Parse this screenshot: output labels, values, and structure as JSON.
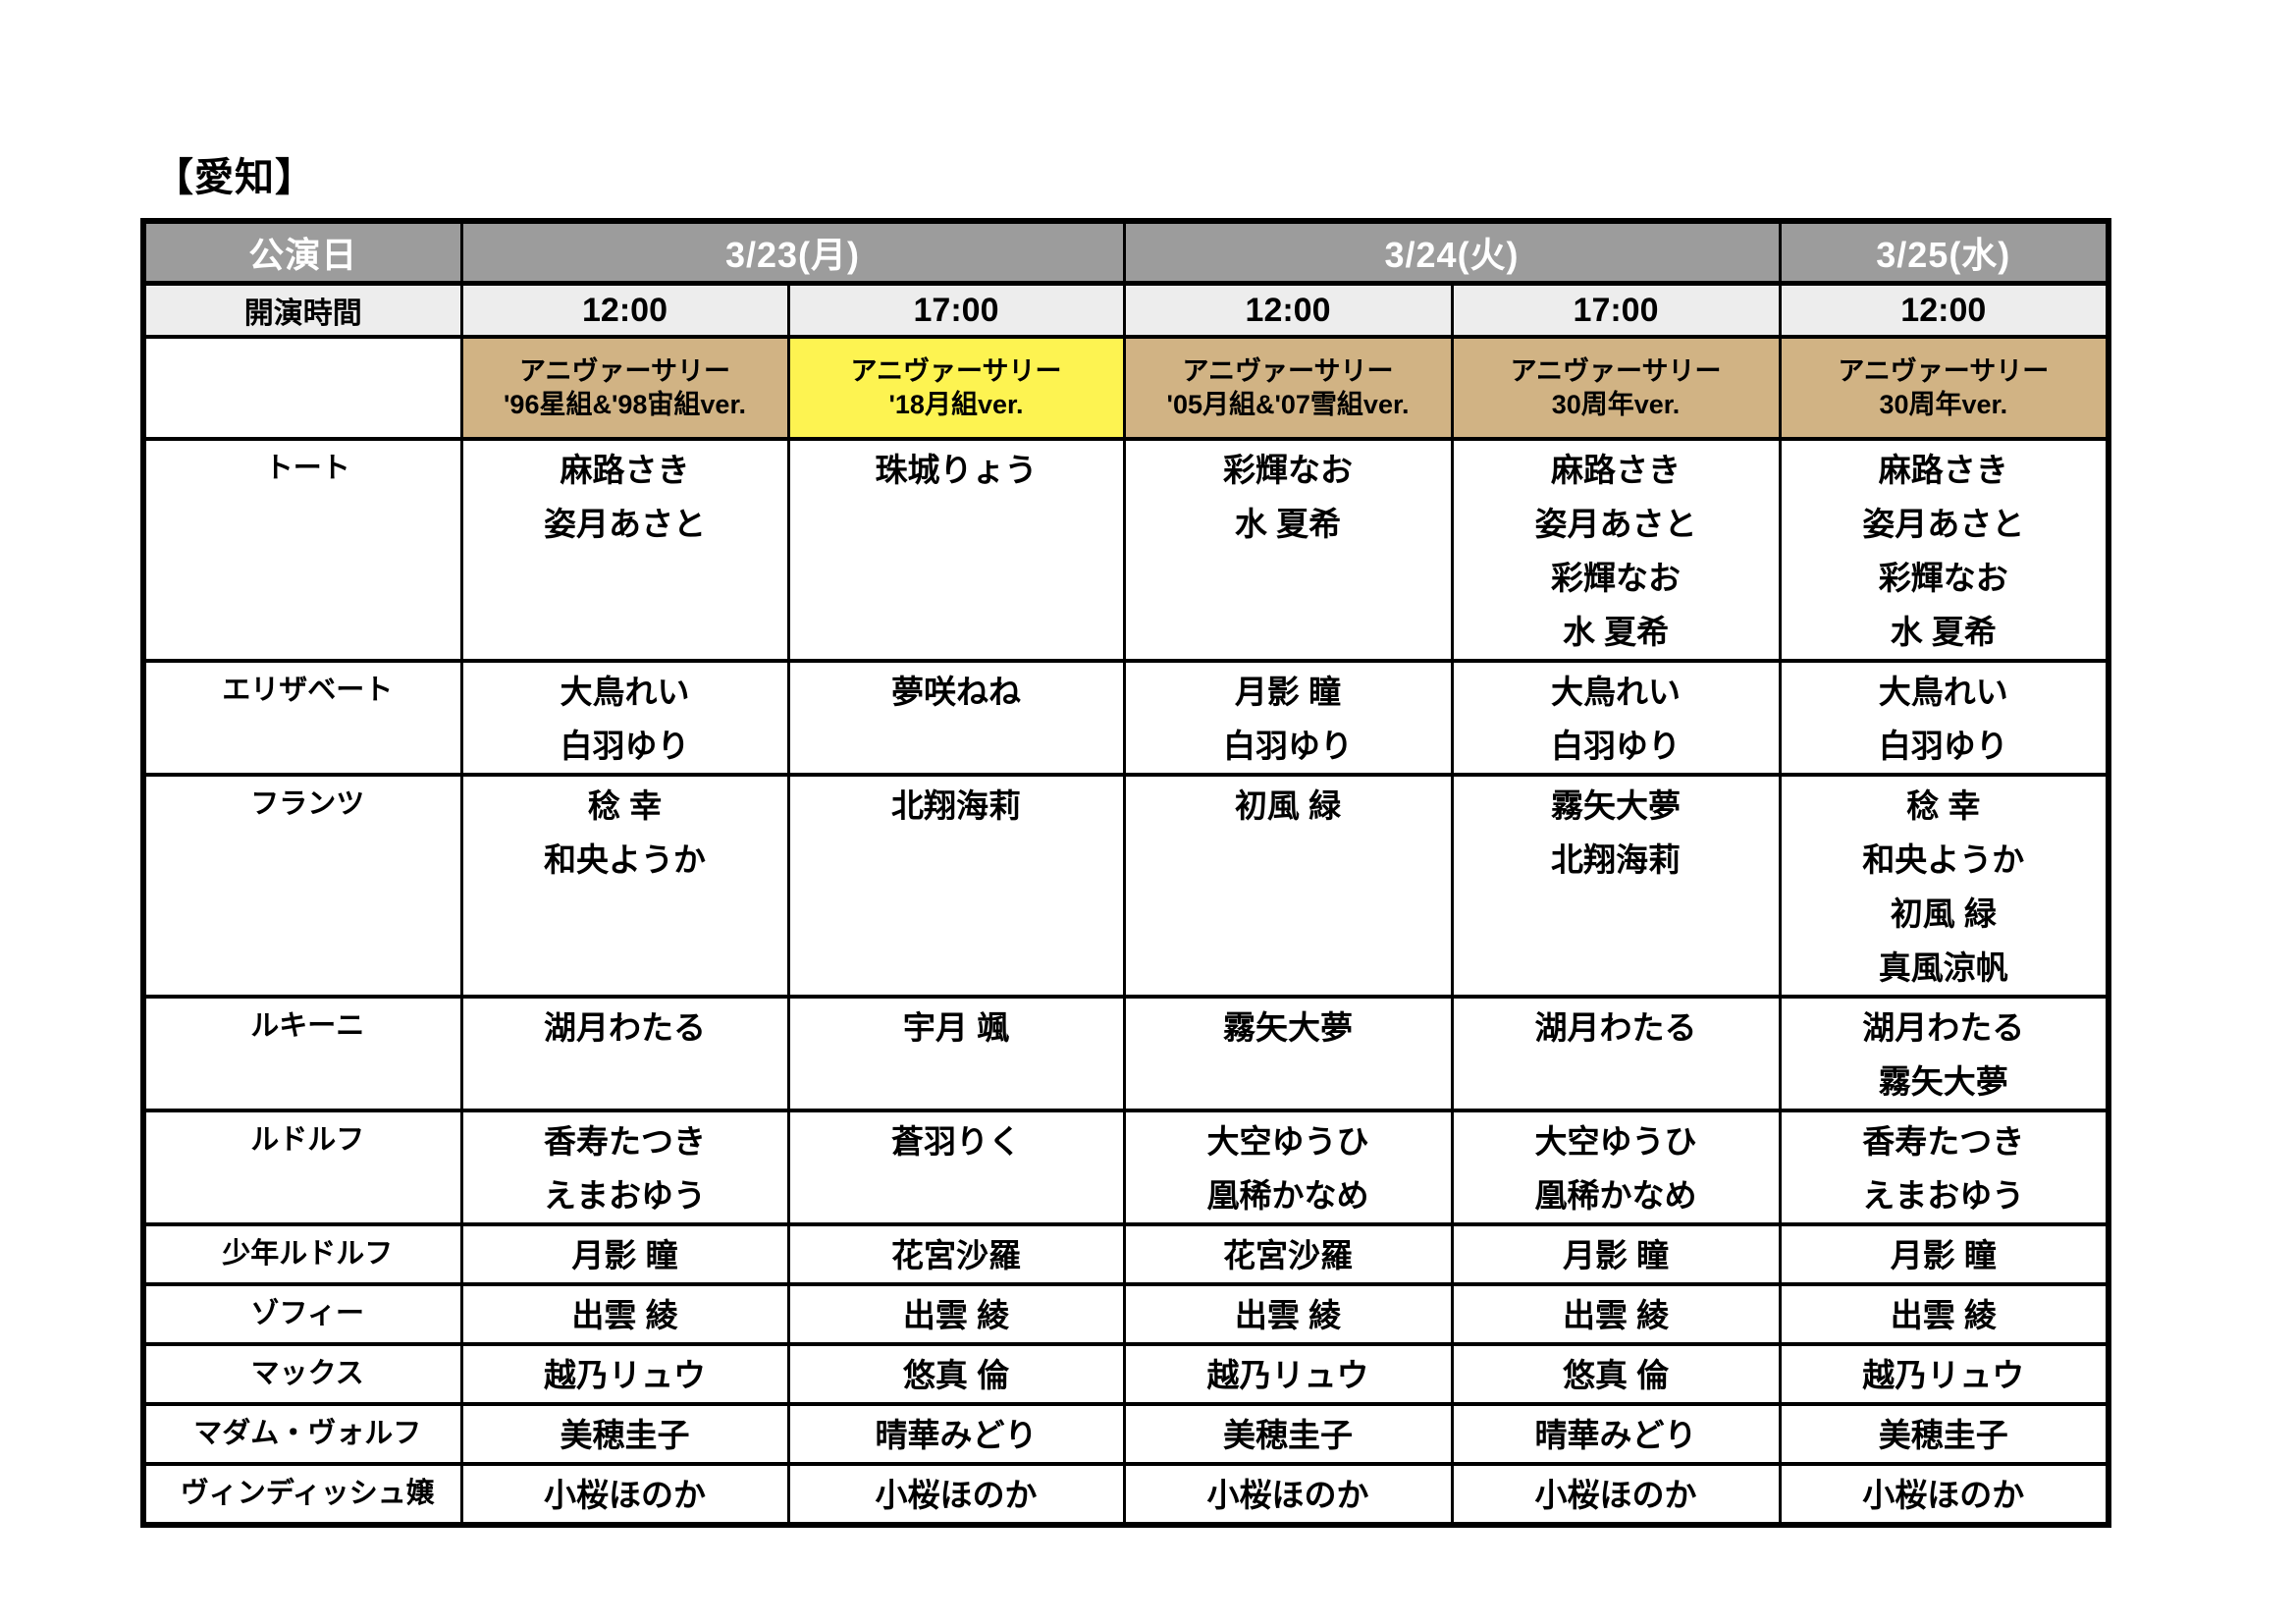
{
  "page": {
    "title": "【愛知】"
  },
  "colors": {
    "header_bg": "#9c9c9c",
    "header_text": "#ffffff",
    "subheader_bg": "#ededed",
    "version_tan": "#d1b384",
    "version_yellow": "#fdf351",
    "border": "#000000"
  },
  "table": {
    "date_row": {
      "label": "公演日",
      "dates": [
        "3/23(月)",
        "3/24(火)",
        "3/25(水)"
      ]
    },
    "time_row": {
      "label": "開演時間",
      "times": [
        "12:00",
        "17:00",
        "12:00",
        "17:00",
        "12:00"
      ]
    },
    "version_row": [
      {
        "line1": "アニヴァーサリー",
        "line2": "'96星組&'98宙組ver."
      },
      {
        "line1": "アニヴァーサリー",
        "line2": "'18月組ver."
      },
      {
        "line1": "アニヴァーサリー",
        "line2": "'05月組&'07雪組ver."
      },
      {
        "line1": "アニヴァーサリー",
        "line2": "30周年ver."
      },
      {
        "line1": "アニヴァーサリー",
        "line2": "30周年ver."
      }
    ],
    "roles": [
      {
        "role": "トート",
        "cells": [
          [
            "麻路さき",
            "姿月あさと"
          ],
          [
            "珠城りょう"
          ],
          [
            "彩輝なお",
            "水 夏希"
          ],
          [
            "麻路さき",
            "姿月あさと",
            "彩輝なお",
            "水 夏希"
          ],
          [
            "麻路さき",
            "姿月あさと",
            "彩輝なお",
            "水 夏希"
          ]
        ]
      },
      {
        "role": "エリザベート",
        "cells": [
          [
            "大鳥れい",
            "白羽ゆり"
          ],
          [
            "夢咲ねね"
          ],
          [
            "月影 瞳",
            "白羽ゆり"
          ],
          [
            "大鳥れい",
            "白羽ゆり"
          ],
          [
            "大鳥れい",
            "白羽ゆり"
          ]
        ]
      },
      {
        "role": "フランツ",
        "cells": [
          [
            "稔 幸",
            "和央ようか"
          ],
          [
            "北翔海莉"
          ],
          [
            "初風 緑"
          ],
          [
            "霧矢大夢",
            "北翔海莉"
          ],
          [
            "稔 幸",
            "和央ようか",
            "初風 緑",
            "真風涼帆"
          ]
        ]
      },
      {
        "role": "ルキーニ",
        "cells": [
          [
            "湖月わたる"
          ],
          [
            "宇月 颯"
          ],
          [
            "霧矢大夢"
          ],
          [
            "湖月わたる"
          ],
          [
            "湖月わたる",
            "霧矢大夢"
          ]
        ]
      },
      {
        "role": "ルドルフ",
        "cells": [
          [
            "香寿たつき",
            "えまおゆう"
          ],
          [
            "蒼羽りく"
          ],
          [
            "大空ゆうひ",
            "凰稀かなめ"
          ],
          [
            "大空ゆうひ",
            "凰稀かなめ"
          ],
          [
            "香寿たつき",
            "えまおゆう"
          ]
        ]
      },
      {
        "role": "少年ルドルフ",
        "cells": [
          [
            "月影 瞳"
          ],
          [
            "花宮沙羅"
          ],
          [
            "花宮沙羅"
          ],
          [
            "月影 瞳"
          ],
          [
            "月影 瞳"
          ]
        ]
      },
      {
        "role": "ゾフィー",
        "cells": [
          [
            "出雲 綾"
          ],
          [
            "出雲 綾"
          ],
          [
            "出雲 綾"
          ],
          [
            "出雲 綾"
          ],
          [
            "出雲 綾"
          ]
        ]
      },
      {
        "role": "マックス",
        "cells": [
          [
            "越乃リュウ"
          ],
          [
            "悠真 倫"
          ],
          [
            "越乃リュウ"
          ],
          [
            "悠真 倫"
          ],
          [
            "越乃リュウ"
          ]
        ]
      },
      {
        "role": "マダム・ヴォルフ",
        "cells": [
          [
            "美穂圭子"
          ],
          [
            "晴華みどり"
          ],
          [
            "美穂圭子"
          ],
          [
            "晴華みどり"
          ],
          [
            "美穂圭子"
          ]
        ]
      },
      {
        "role": "ヴィンディッシュ嬢",
        "cells": [
          [
            "小桜ほのか"
          ],
          [
            "小桜ほのか"
          ],
          [
            "小桜ほのか"
          ],
          [
            "小桜ほのか"
          ],
          [
            "小桜ほのか"
          ]
        ]
      }
    ]
  }
}
